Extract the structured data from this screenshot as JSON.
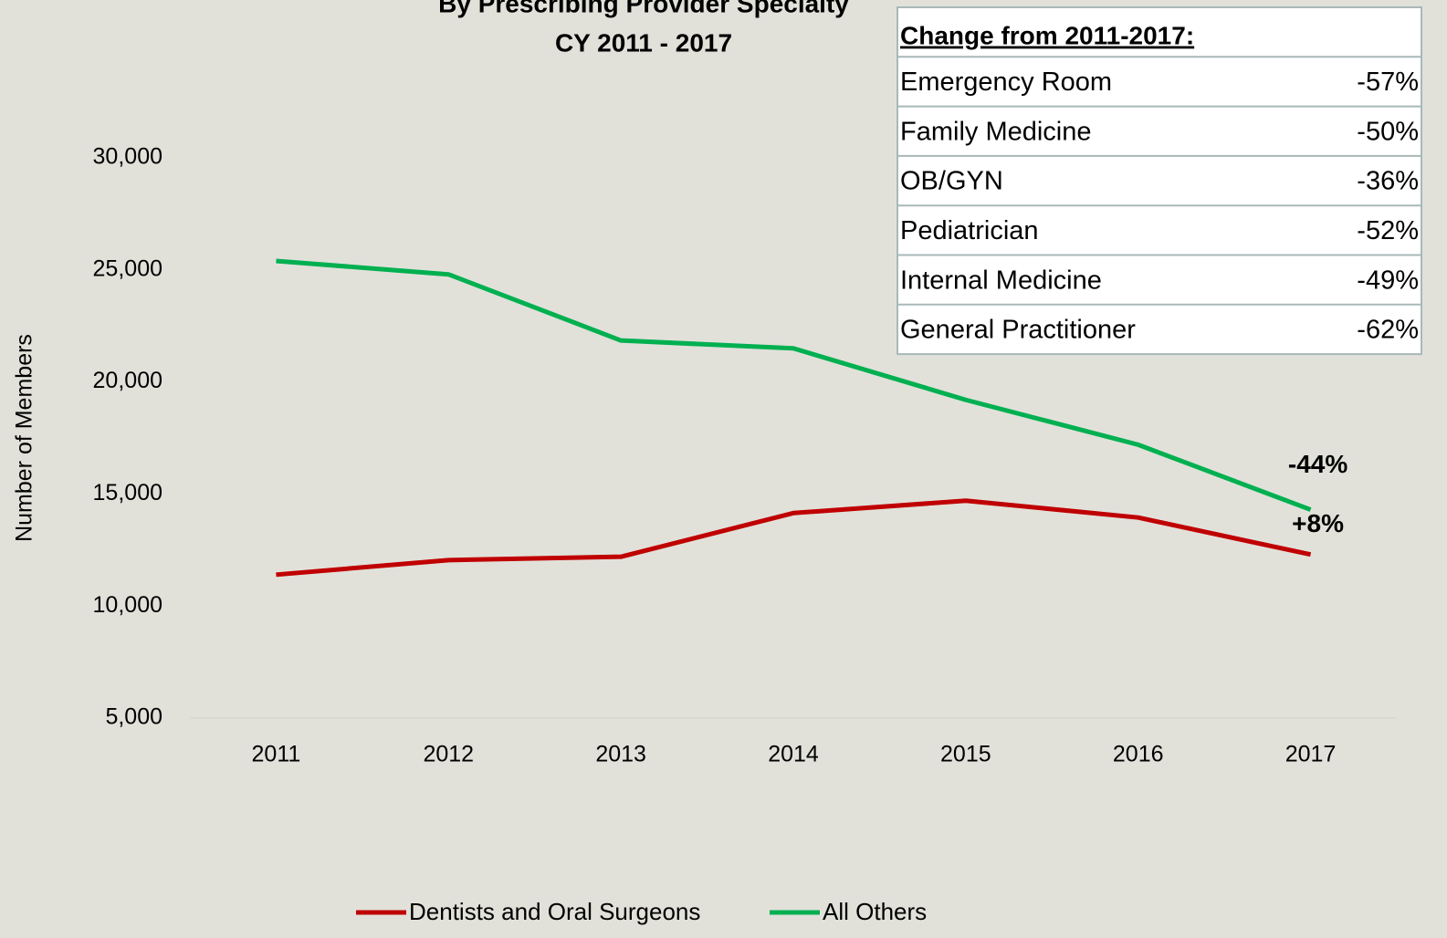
{
  "chart_data": {
    "type": "line",
    "title": "By Prescribing Provider Specialty",
    "subtitle": "CY 2011 - 2017",
    "y_label": "Number of Members",
    "categories": [
      "2011",
      "2012",
      "2013",
      "2014",
      "2015",
      "2016",
      "2017"
    ],
    "series": [
      {
        "name": "Dentists and Oral Surgeons",
        "color": "#c00000",
        "values": [
          11400,
          12050,
          12200,
          14150,
          14700,
          13950,
          12300
        ],
        "end_label": "+8%"
      },
      {
        "name": "All Others",
        "color": "#00b050",
        "values": [
          25400,
          24800,
          21850,
          21500,
          19200,
          17200,
          14300
        ],
        "end_label": "-44%"
      }
    ],
    "ylim": [
      5000,
      30000
    ],
    "yticks": [
      {
        "value": 5000,
        "label": "5,000"
      },
      {
        "value": 10000,
        "label": "10,000"
      },
      {
        "value": 15000,
        "label": "15,000"
      },
      {
        "value": 20000,
        "label": "20,000"
      },
      {
        "value": 25000,
        "label": "25,000"
      },
      {
        "value": 30000,
        "label": "30,000"
      }
    ],
    "grid": false,
    "legend": "bottom"
  },
  "change_table": {
    "title": "Change from 2011-2017:",
    "rows": [
      [
        "Emergency Room",
        "-57%"
      ],
      [
        "Family Medicine",
        "-50%"
      ],
      [
        "OB/GYN",
        "-36%"
      ],
      [
        "Pediatrician",
        "-52%"
      ],
      [
        "Internal Medicine",
        "-49%"
      ],
      [
        "General Practitioner",
        "-62%"
      ]
    ]
  }
}
